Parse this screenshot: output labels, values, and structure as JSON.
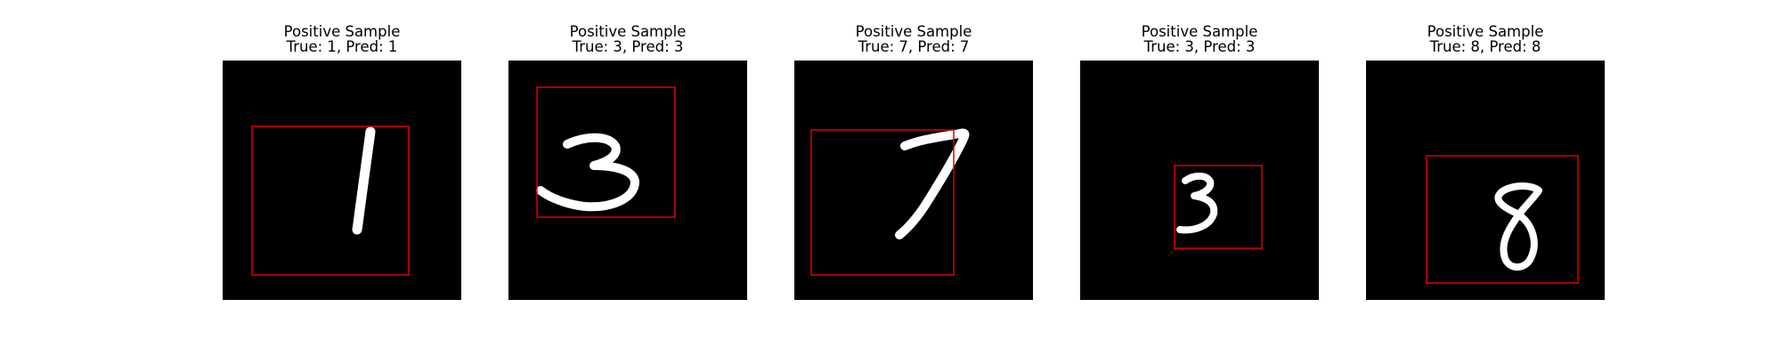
{
  "panels": [
    {
      "title": "Positive Sample",
      "subtitle": "True: 1, Pred: 1",
      "digit": "1"
    },
    {
      "title": "Positive Sample",
      "subtitle": "True: 3, Pred: 3",
      "digit": "3"
    },
    {
      "title": "Positive Sample",
      "subtitle": "True: 7, Pred: 7",
      "digit": "7"
    },
    {
      "title": "Positive Sample",
      "subtitle": "True: 3, Pred: 3",
      "digit": "3"
    },
    {
      "title": "Positive Sample",
      "subtitle": "True: 8, Pred: 8",
      "digit": "8"
    }
  ],
  "colors": {
    "box": "#e00000",
    "background": "#000000",
    "stroke": "#ffffff"
  }
}
